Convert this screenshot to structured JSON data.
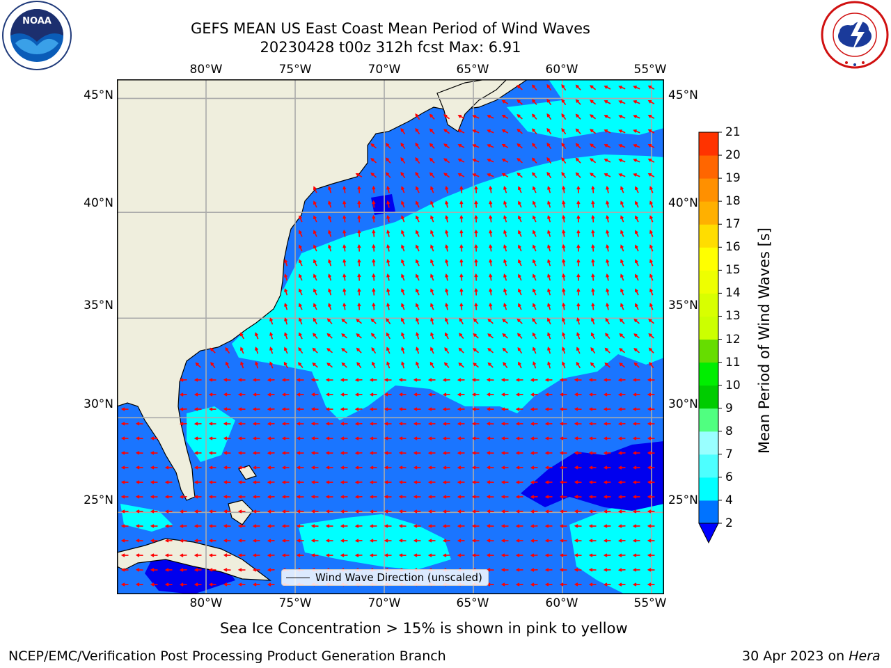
{
  "title_line1": "GEFS MEAN US East Coast Mean Period of Wind Waves",
  "title_line2": "20230428 t00z 312h fcst   Max: 6.91",
  "map": {
    "lon_labels": [
      "80°W",
      "75°W",
      "70°W",
      "65°W",
      "60°W",
      "55°W"
    ],
    "lat_labels": [
      "45°N",
      "40°N",
      "35°N",
      "30°N",
      "25°N"
    ],
    "lon_values": [
      -80,
      -75,
      -70,
      -65,
      -60,
      -55
    ],
    "lat_values": [
      45,
      40,
      35,
      30,
      25
    ],
    "extent": {
      "lon_min": -85,
      "lon_max": -54.3,
      "lat_min": 20.5,
      "lat_max": 45.8
    },
    "colors": {
      "land": "#efeedd",
      "ocean_base": "#1a75ff",
      "ocean_light": "#00ffff",
      "ocean_dark": "#0000ee",
      "arrow": "#ff0000",
      "grid": "#aaaaaa"
    }
  },
  "legend": {
    "label": "Wind Wave Direction (unscaled)"
  },
  "colorbar": {
    "label": "Mean Period of Wind Waves [s]",
    "ticks": [
      "2",
      "4",
      "6",
      "7",
      "8",
      "9",
      "10",
      "11",
      "12",
      "13",
      "14",
      "15",
      "16",
      "17",
      "18",
      "19",
      "20",
      "21"
    ],
    "colors": [
      "#0073ff",
      "#00ffff",
      "#4dffff",
      "#99ffff",
      "#50ff80",
      "#00cc00",
      "#00ee00",
      "#66dd00",
      "#ccff00",
      "#d8ff00",
      "#eeff00",
      "#ffff00",
      "#ffdd00",
      "#ffb000",
      "#ff9000",
      "#ff6600",
      "#ff3300"
    ],
    "extend_color": "#0000ff"
  },
  "sea_ice_note": "Sea Ice Concentration > 15% is shown in pink to yellow",
  "footer_left": "NCEP/EMC/Verification Post Processing Product Generation Branch",
  "footer_right_date": "30 Apr 2023 on ",
  "footer_right_machine": "Hera",
  "logos": {
    "noaa_text": "NOAA"
  }
}
